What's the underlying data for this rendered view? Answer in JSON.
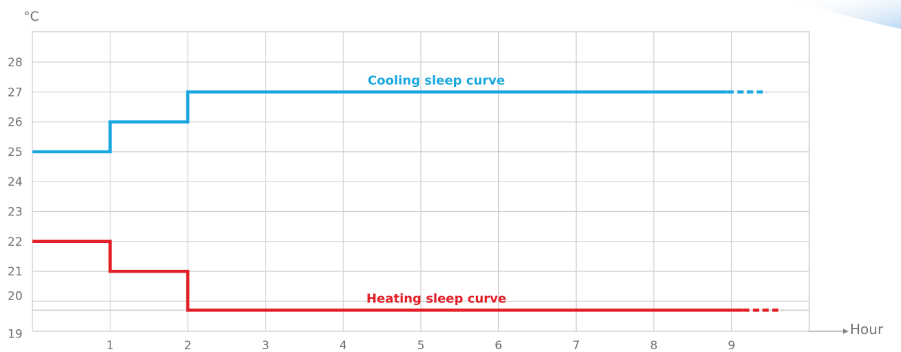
{
  "chart_data": {
    "type": "line",
    "step": true,
    "y_unit": "°C",
    "x_axis_label": "Hour",
    "x_ticks": [
      "1",
      "2",
      "3",
      "4",
      "5",
      "6",
      "7",
      "8",
      "9"
    ],
    "y_ticks": [
      "19",
      "20",
      "21",
      "22",
      "23",
      "24",
      "25",
      "26",
      "27",
      "28"
    ],
    "xlim": [
      0,
      10.5
    ],
    "grid": true,
    "series": [
      {
        "name": "Cooling sleep curve",
        "color": "#1aa7e0",
        "points": [
          [
            0,
            25
          ],
          [
            1,
            25
          ],
          [
            1,
            26
          ],
          [
            2,
            26
          ],
          [
            2,
            27
          ],
          [
            8.95,
            27
          ]
        ],
        "continuation": [
          8.95,
          9.45,
          27
        ]
      },
      {
        "name": "Heating sleep curve",
        "color": "#e21f26",
        "points": [
          [
            0,
            22
          ],
          [
            1,
            22
          ],
          [
            1,
            21
          ],
          [
            2,
            21
          ],
          [
            2,
            19.7
          ],
          [
            9.15,
            19.7
          ]
        ],
        "continuation": [
          9.15,
          9.65,
          19.7
        ]
      }
    ]
  }
}
